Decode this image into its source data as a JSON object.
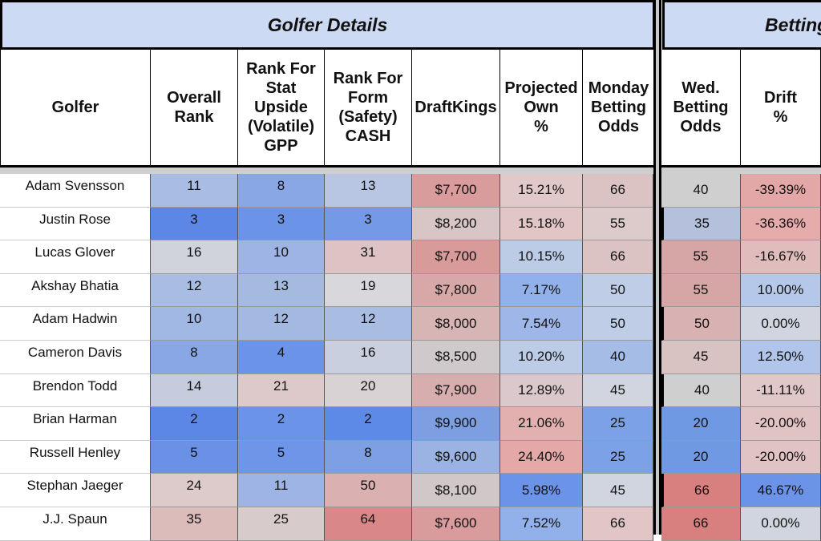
{
  "sections": {
    "golfer_details": "Golfer Details",
    "betting": "Betting"
  },
  "headers": [
    "Golfer",
    "Overall\nRank",
    "Rank For\nStat\nUpside\n(Volatile)\nGPP",
    "Rank For\nForm\n(Safety)\nCASH",
    "DraftKings",
    "Projected\nOwn\n%",
    "Monday\nBetting\nOdds",
    "Wed.\nBetting\nOdds",
    "Drift\n%"
  ],
  "rows": [
    {
      "golfer": "Adam Svensson",
      "overall": "11",
      "upside": "8",
      "form": "13",
      "dk": "$7,700",
      "own": "15.21%",
      "monday": "66",
      "wed": "40",
      "drift": "-39.39%"
    },
    {
      "golfer": "Justin Rose",
      "overall": "3",
      "upside": "3",
      "form": "3",
      "dk": "$8,200",
      "own": "15.18%",
      "monday": "55",
      "wed": "35",
      "drift": "-36.36%"
    },
    {
      "golfer": "Lucas Glover",
      "overall": "16",
      "upside": "10",
      "form": "31",
      "dk": "$7,700",
      "own": "10.15%",
      "monday": "66",
      "wed": "55",
      "drift": "-16.67%"
    },
    {
      "golfer": "Akshay Bhatia",
      "overall": "12",
      "upside": "13",
      "form": "19",
      "dk": "$7,800",
      "own": "7.17%",
      "monday": "50",
      "wed": "55",
      "drift": "10.00%"
    },
    {
      "golfer": "Adam Hadwin",
      "overall": "10",
      "upside": "12",
      "form": "12",
      "dk": "$8,000",
      "own": "7.54%",
      "monday": "50",
      "wed": "50",
      "drift": "0.00%"
    },
    {
      "golfer": "Cameron Davis",
      "overall": "8",
      "upside": "4",
      "form": "16",
      "dk": "$8,500",
      "own": "10.20%",
      "monday": "40",
      "wed": "45",
      "drift": "12.50%"
    },
    {
      "golfer": "Brendon Todd",
      "overall": "14",
      "upside": "21",
      "form": "20",
      "dk": "$7,900",
      "own": "12.89%",
      "monday": "45",
      "wed": "40",
      "drift": "-11.11%"
    },
    {
      "golfer": "Brian Harman",
      "overall": "2",
      "upside": "2",
      "form": "2",
      "dk": "$9,900",
      "own": "21.06%",
      "monday": "25",
      "wed": "20",
      "drift": "-20.00%"
    },
    {
      "golfer": "Russell Henley",
      "overall": "5",
      "upside": "5",
      "form": "8",
      "dk": "$9,600",
      "own": "24.40%",
      "monday": "25",
      "wed": "20",
      "drift": "-20.00%"
    },
    {
      "golfer": "Stephan Jaeger",
      "overall": "24",
      "upside": "11",
      "form": "50",
      "dk": "$8,100",
      "own": "5.98%",
      "monday": "45",
      "wed": "66",
      "drift": "46.67%"
    },
    {
      "golfer": "J.J. Spaun",
      "overall": "35",
      "upside": "25",
      "form": "64",
      "dk": "$7,600",
      "own": "7.52%",
      "monday": "66",
      "wed": "66",
      "drift": "0.00%"
    }
  ],
  "cell_colors": [
    [
      "#a9bde3",
      "#8aa7e5",
      "#b8c6e3",
      "#d99b9b",
      "#e2c9c9",
      "#dcc3c3",
      "#cfcfcf",
      "#e3a7a7"
    ],
    [
      "#5d87e6",
      "#6b93e8",
      "#7499e6",
      "#d8c5c5",
      "#e2c6c6",
      "#ddcaca",
      "#b4c0dc",
      "#e6acac"
    ],
    [
      "#d0d3dc",
      "#9db4e4",
      "#ddc3c3",
      "#d99a9a",
      "#bccbe6",
      "#dcc3c3",
      "#d6a5a5",
      "#e1bcbc"
    ],
    [
      "#a9bde3",
      "#a5badf",
      "#d8d7dc",
      "#d8a7a7",
      "#92b0ea",
      "#bfcde6",
      "#d6a5a5",
      "#b5c8ea"
    ],
    [
      "#a1b7e4",
      "#a4b9e2",
      "#a9bde3",
      "#d8b5b5",
      "#9fb7e8",
      "#bfcde6",
      "#d8b2b2",
      "#d0d5e0"
    ],
    [
      "#8aa7e5",
      "#6b93e8",
      "#c9cfde",
      "#cfc9cb",
      "#bccbe6",
      "#a5bce6",
      "#d8c2c2",
      "#b1c5ea"
    ],
    [
      "#c4ccde",
      "#ddc9c9",
      "#d8d2d4",
      "#d8adad",
      "#dbc8cc",
      "#d0d5e0",
      "#cfcfcf",
      "#e1c8c8"
    ],
    [
      "#5d87e6",
      "#6b93e8",
      "#5d8ae6",
      "#7d9fe2",
      "#e3b0b0",
      "#7da1e6",
      "#7099e4",
      "#e1c3c3"
    ],
    [
      "#6a91e6",
      "#6e95e7",
      "#7d9fe3",
      "#9bb3e2",
      "#e5a8a8",
      "#7da1e6",
      "#7099e4",
      "#e1c3c3"
    ],
    [
      "#ddcaca",
      "#9db4e4",
      "#dbb0b0",
      "#d1c7c9",
      "#6b93e8",
      "#d0d5e0",
      "#d87f7f",
      "#6b93e8"
    ],
    [
      "#dcbbbb",
      "#d8cbcb",
      "#d98787",
      "#d99b9b",
      "#92b0ea",
      "#e2c6c6",
      "#d87f7f",
      "#d0d5e0"
    ]
  ]
}
